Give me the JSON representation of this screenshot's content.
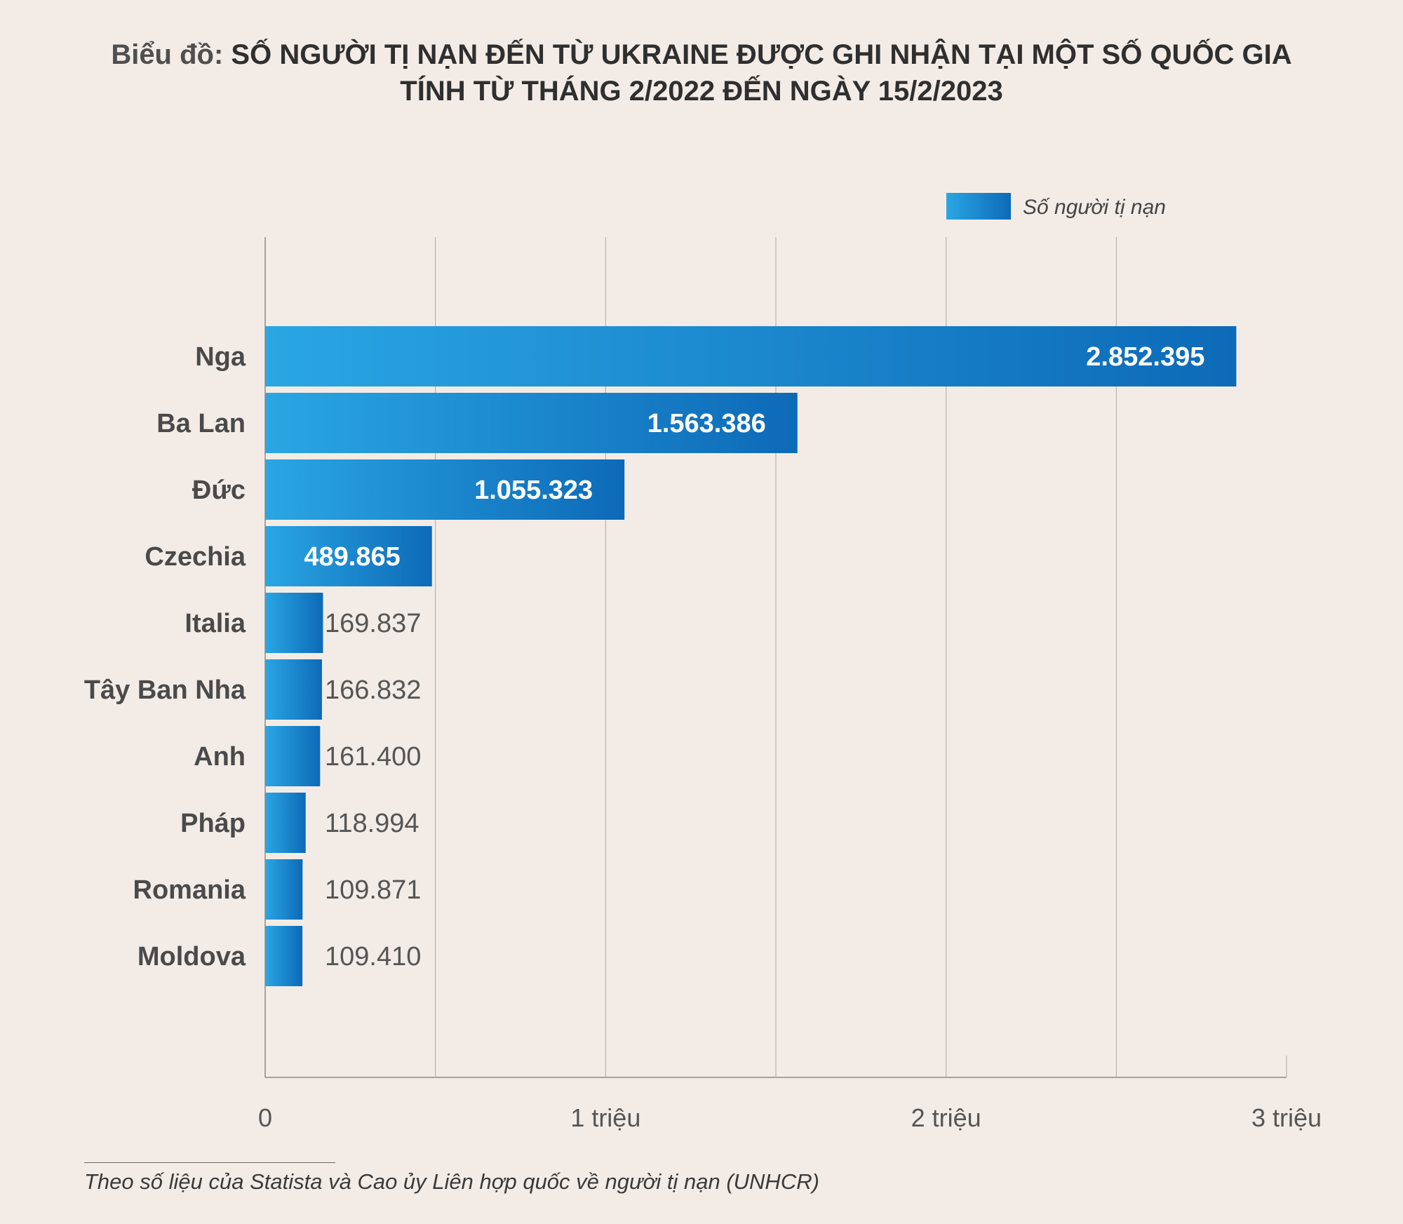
{
  "title": {
    "prefix": "Biểu đồ:",
    "line1": "SỐ NGƯỜI TỊ NẠN ĐẾN TỪ UKRAINE ĐƯỢC GHI NHẬN TẠI MỘT SỐ QUỐC GIA",
    "line2": "TÍNH TỪ THÁNG 2/2022 ĐẾN NGÀY 15/2/2023"
  },
  "source": "Theo số liệu của Statista và Cao ủy Liên hợp quốc về người tị nạn (UNHCR)",
  "colors": {
    "bar_start": "#2aa6e3",
    "bar_end": "#0d6ab8",
    "label_inside": "#ffffff",
    "label_outside": "#555555",
    "background": "#f3ece6",
    "grid": "#b8b3ae"
  },
  "chart_data": {
    "type": "bar",
    "orientation": "horizontal",
    "title": "SỐ NGƯỜI TỊ NẠN ĐẾN TỪ UKRAINE ĐƯỢC GHI NHẬN TẠI MỘT SỐ QUỐC GIA TÍNH TỪ THÁNG 2/2022 ĐẾN NGÀY 15/2/2023",
    "legend": "Số người tị nạn",
    "legend_position": "top-right",
    "categories": [
      "Nga",
      "Ba Lan",
      "Đức",
      "Czechia",
      "Italia",
      "Tây Ban Nha",
      "Anh",
      "Pháp",
      "Romania",
      "Moldova"
    ],
    "values": [
      2852395,
      1563386,
      1055323,
      489865,
      169837,
      166832,
      161400,
      118994,
      109871,
      109410
    ],
    "value_labels": [
      "2.852.395",
      "1.563.386",
      "1.055.323",
      "489.865",
      "169.837",
      "166.832",
      "161.400",
      "118.994",
      "109.871",
      "109.410"
    ],
    "xlim": [
      0,
      3000000
    ],
    "ticks": [
      0,
      1000000,
      2000000,
      3000000
    ],
    "tick_labels": [
      "0",
      "1 triệu",
      "2 triệu",
      "3 triệu"
    ],
    "grid": true
  }
}
